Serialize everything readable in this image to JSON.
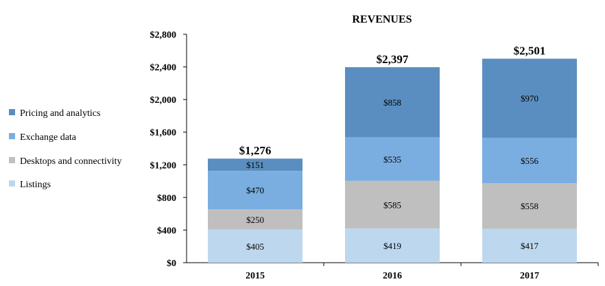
{
  "chart_data": {
    "type": "bar",
    "stacked": true,
    "title": "REVENUES",
    "categories": [
      "2015",
      "2016",
      "2017"
    ],
    "series": [
      {
        "name": "Listings",
        "color": "#bdd7ee",
        "values": [
          405,
          419,
          417
        ],
        "labels": [
          "$405",
          "$419",
          "$417"
        ]
      },
      {
        "name": "Desktops and connectivity",
        "color": "#bfbfbf",
        "values": [
          250,
          585,
          558
        ],
        "labels": [
          "$250",
          "$585",
          "$558"
        ]
      },
      {
        "name": "Exchange data",
        "color": "#7aaee0",
        "values": [
          470,
          535,
          556
        ],
        "labels": [
          "$470",
          "$535",
          "$556"
        ]
      },
      {
        "name": "Pricing and analytics",
        "color": "#5b8ec0",
        "values": [
          151,
          858,
          970
        ],
        "labels": [
          "$151",
          "$858",
          "$970"
        ]
      }
    ],
    "totals": [
      "$1,276",
      "$2,397",
      "$2,501"
    ],
    "ylim": [
      0,
      2800
    ],
    "yticks": [
      0,
      400,
      800,
      1200,
      1600,
      2000,
      2400,
      2800
    ],
    "ytick_labels": [
      "$0",
      "$400",
      "$800",
      "$1,200",
      "$1,600",
      "$2,000",
      "$2,400",
      "$2,800"
    ],
    "legend": [
      "Pricing and analytics",
      "Exchange data",
      "Desktops and connectivity",
      "Listings"
    ],
    "legend_position": "left",
    "xlabel": "",
    "ylabel": "",
    "grid": false
  }
}
